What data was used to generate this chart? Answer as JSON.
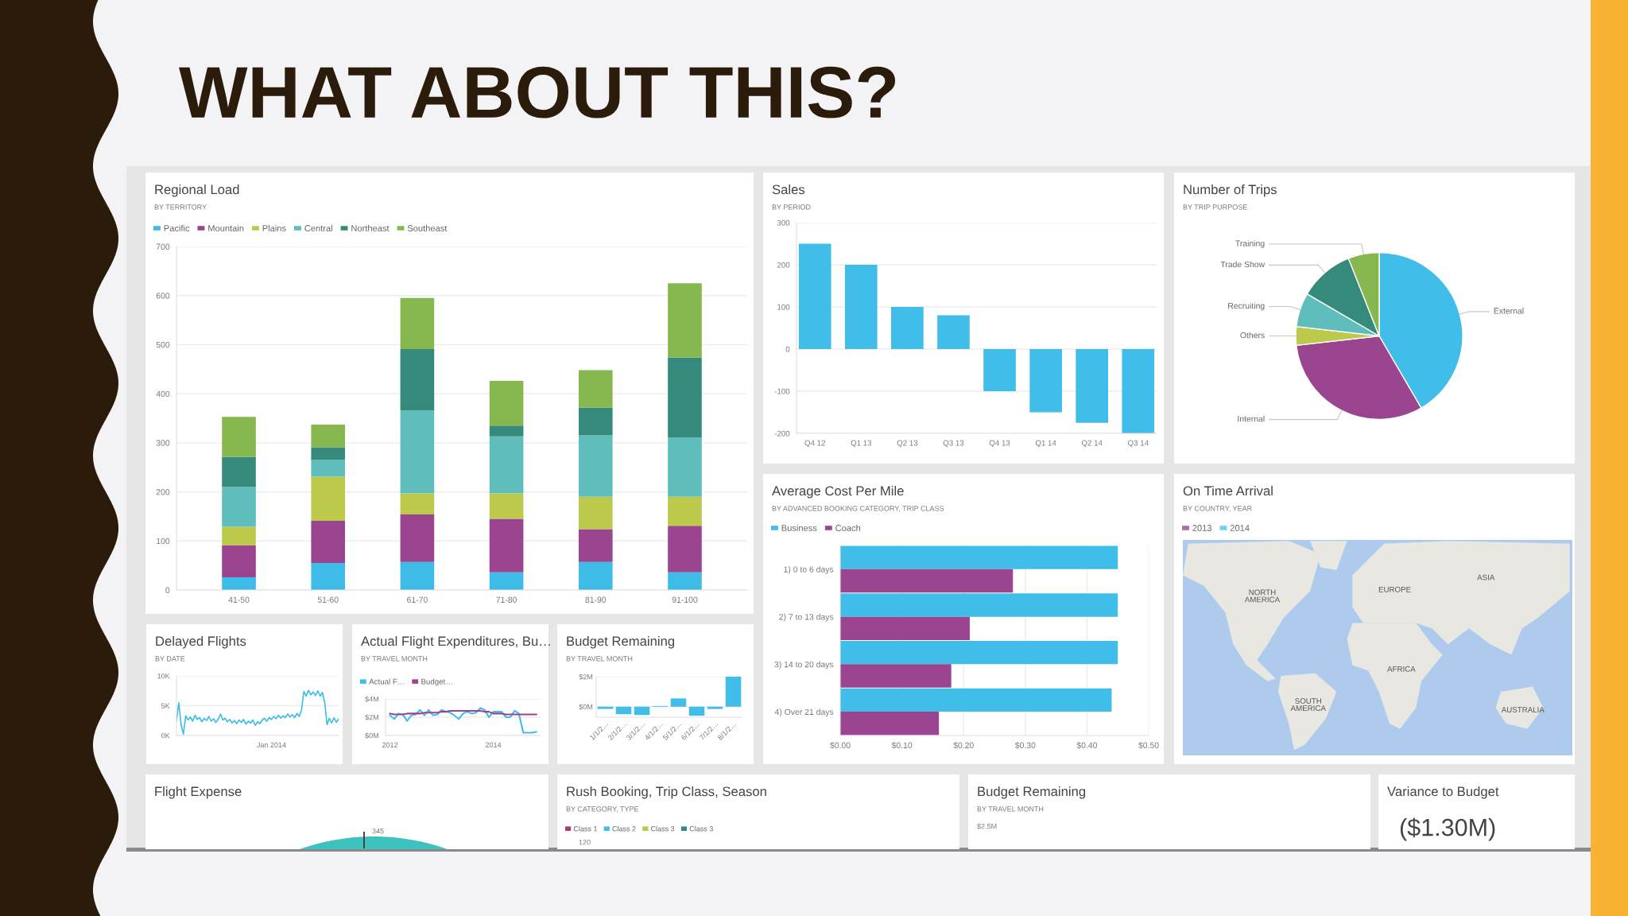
{
  "chart_data": [
    {
      "type": "other",
      "title": "WHAT ABOUT THIS?"
    },
    {
      "type": "bar",
      "title": "Regional Load",
      "subtitle": "BY TERRITORY",
      "categories": [
        "41-50",
        "51-60",
        "61-70",
        "71-80",
        "81-90",
        "91-100"
      ],
      "stacked": true,
      "series": [
        {
          "name": "Pacific",
          "color": "#3fbbe8",
          "values": [
            26,
            55,
            57,
            36,
            57,
            36
          ]
        },
        {
          "name": "Mountain",
          "color": "#9b4591",
          "values": [
            65,
            86,
            97,
            109,
            67,
            95
          ]
        },
        {
          "name": "Plains",
          "color": "#bdc94a",
          "values": [
            38,
            90,
            43,
            52,
            66,
            59
          ]
        },
        {
          "name": "Central",
          "color": "#5fbdbb",
          "values": [
            81,
            34,
            169,
            116,
            125,
            121
          ]
        },
        {
          "name": "Northeast",
          "color": "#368a7b",
          "values": [
            61,
            26,
            125,
            22,
            57,
            163
          ]
        },
        {
          "name": "Southeast",
          "color": "#87b850",
          "values": [
            82,
            46,
            104,
            91,
            76,
            151
          ]
        }
      ],
      "ylim": [
        0,
        700
      ],
      "yticks": [
        0,
        100,
        200,
        300,
        400,
        500,
        600,
        700
      ],
      "grid": "y",
      "legend": "top left"
    },
    {
      "type": "bar",
      "title": "Sales",
      "subtitle": "BY PERIOD",
      "categories": [
        "Q4 12",
        "Q1 13",
        "Q2 13",
        "Q3 13",
        "Q4 13",
        "Q1 14",
        "Q2 14",
        "Q3 14"
      ],
      "values": [
        250,
        200,
        100,
        80,
        -100,
        -150,
        -175,
        -200
      ],
      "color": "#41bde9",
      "ylim": [
        -200,
        300
      ],
      "yticks": [
        -200,
        -100,
        0,
        100,
        200,
        300
      ],
      "grid": "y"
    },
    {
      "type": "pie",
      "title": "Number of Trips",
      "subtitle": "BY TRIP PURPOSE",
      "categories": [
        "External",
        "Internal",
        "Others",
        "Recruiting",
        "Trade Show",
        "Training"
      ],
      "values": [
        41.6,
        31.6,
        3.6,
        6.6,
        10.6,
        6.0
      ],
      "colors": [
        "#41bde9",
        "#9b4591",
        "#bdc94a",
        "#5fbdbb",
        "#368a7b",
        "#87b850"
      ]
    },
    {
      "type": "bar",
      "orientation": "horizontal",
      "title": "Average Cost Per Mile",
      "subtitle": "BY ADVANCED BOOKING CATEGORY, TRIP CLASS",
      "categories": [
        "1) 0 to 6 days",
        "2) 7 to 13 days",
        "3) 14 to 20 days",
        "4) Over 21 days"
      ],
      "series": [
        {
          "name": "Business",
          "color": "#41bde9",
          "values": [
            0.45,
            0.45,
            0.45,
            0.44
          ]
        },
        {
          "name": "Coach",
          "color": "#9b4591",
          "values": [
            0.28,
            0.21,
            0.18,
            0.16
          ]
        }
      ],
      "xlim": [
        0,
        0.5
      ],
      "xticks": [
        {
          "value": 0,
          "label": "$0.00"
        },
        {
          "value": 0.1,
          "label": "$0.10"
        },
        {
          "value": 0.2,
          "label": "$0.20"
        },
        {
          "value": 0.3,
          "label": "$0.30"
        },
        {
          "value": 0.4,
          "label": "$0.40"
        },
        {
          "value": 0.5,
          "label": "$0.50"
        }
      ],
      "grid": "x",
      "legend": "top left"
    },
    {
      "type": "other",
      "title": "On Time Arrival",
      "subtitle": "BY COUNTRY, YEAR",
      "series": [
        {
          "name": "2013",
          "color": "#b06aa6"
        },
        {
          "name": "2014",
          "color": "#6fd0f5"
        }
      ],
      "legend": "top left",
      "annotations": [
        "NORTH\nAMERICA",
        "EUROPE",
        "ASIA",
        "AFRICA",
        "SOUTH\nAMERICA",
        "AUSTRALIA"
      ]
    },
    {
      "type": "line",
      "title": "Delayed Flights",
      "subtitle": "BY DATE",
      "categories": [
        null,
        null,
        null,
        null,
        null,
        null,
        null,
        null,
        null,
        null,
        null,
        null,
        null,
        null,
        null,
        null,
        null,
        null,
        null,
        null,
        null,
        null,
        null,
        null,
        null,
        null,
        null,
        null,
        null,
        null,
        null,
        null,
        null,
        null,
        null,
        null,
        null,
        null,
        null,
        null,
        null,
        "Jan 2014",
        null,
        null,
        null,
        null,
        null,
        null,
        null,
        null,
        null,
        null,
        null,
        null,
        null,
        null,
        null,
        null,
        null,
        null,
        null,
        null,
        null,
        null,
        null,
        null,
        null,
        null,
        null,
        null,
        null
      ],
      "values": [
        2500,
        5500,
        1800,
        200,
        3300,
        2600,
        3100,
        2400,
        3400,
        2700,
        3000,
        2300,
        2900,
        2500,
        3200,
        2400,
        2800,
        2200,
        2700,
        3600,
        2600,
        2900,
        2300,
        2700,
        2100,
        2500,
        2000,
        2600,
        2200,
        2700,
        1900,
        2400,
        2100,
        2600,
        1700,
        2300,
        2000,
        2600,
        2900,
        2400,
        3000,
        2700,
        3200,
        2800,
        3400,
        2900,
        3300,
        3000,
        3600,
        3100,
        3500,
        3000,
        3700,
        3200,
        4300,
        7400,
        6600,
        7600,
        6800,
        7300,
        6700,
        7500,
        6600,
        7200,
        5500,
        1800,
        2900,
        2100,
        3000,
        2200,
        2800
      ],
      "color": "#41bde9",
      "ylim": [
        0,
        10000
      ],
      "yticks": [
        {
          "value": 0,
          "label": "0K"
        },
        {
          "value": 5000,
          "label": "5K"
        },
        {
          "value": 10000,
          "label": "10K"
        }
      ],
      "grid": "y"
    },
    {
      "type": "line",
      "title": "Actual Flight Expenditures, Bu…",
      "subtitle": "BY TRAVEL MONTH",
      "x": [
        "2012-01",
        "2012-02",
        "2012-03",
        "2012-04",
        "2012-05",
        "2012-06",
        "2012-07",
        "2012-08",
        "2012-09",
        "2012-10",
        "2012-11",
        "2012-12",
        "2013-01",
        "2013-02",
        "2013-03",
        "2013-04",
        "2013-05",
        "2013-06",
        "2013-07",
        "2013-08",
        "2013-09",
        "2013-10",
        "2013-11",
        "2013-12",
        "2014-01",
        "2014-02",
        "2014-03",
        "2014-04",
        "2014-05",
        "2014-06",
        "2014-07",
        "2014-08",
        "2014-09",
        "2014-10",
        "2014-11"
      ],
      "series": [
        {
          "name": "Actual F…",
          "color": "#41bde9",
          "values": [
            2.2,
            1.8,
            2.4,
            2.3,
            1.6,
            2.2,
            2.3,
            2.8,
            2.2,
            2.8,
            2.2,
            2.3,
            2.8,
            2.6,
            2.5,
            2.2,
            1.8,
            2.4,
            2.6,
            2.4,
            2.5,
            3.0,
            2.8,
            2.0,
            2.6,
            2.6,
            2.6,
            2.0,
            2.0,
            2.7,
            2.4,
            0.3,
            0.3,
            0.3,
            0.4
          ]
        },
        {
          "name": "Budget…",
          "color": "#9b4591",
          "values": [
            2.4,
            2.3,
            2.3,
            2.3,
            2.4,
            2.4,
            2.4,
            2.4,
            2.5,
            2.5,
            2.5,
            2.5,
            2.6,
            2.6,
            2.7,
            2.7,
            2.7,
            2.7,
            2.7,
            2.7,
            2.7,
            2.7,
            2.6,
            2.6,
            2.4,
            2.4,
            2.4,
            2.3,
            2.3,
            2.3,
            2.3,
            2.3,
            2.3,
            2.3,
            2.3
          ]
        }
      ],
      "xlim": [
        "2011-12",
        "2014-12"
      ],
      "xticks": [
        {
          "value": "2012",
          "label": "2012"
        },
        {
          "value": "2014",
          "label": "2014"
        }
      ],
      "ylim": [
        0,
        4
      ],
      "yticks": [
        {
          "value": 0,
          "label": "$0M"
        },
        {
          "value": 2,
          "label": "$2M"
        },
        {
          "value": 4,
          "label": "$4M"
        }
      ],
      "grid": "y",
      "legend": "top left"
    },
    {
      "type": "bar",
      "title": "Budget Remaining",
      "subtitle": "BY TRAVEL MONTH",
      "categories": [
        "1/1/2…",
        "2/1/2…",
        "3/1/2…",
        "4/1/2…",
        "5/1/2…",
        "6/1/2…",
        "7/1/2…",
        "8/1/2…"
      ],
      "values": [
        -0.15,
        -0.5,
        -0.55,
        0.05,
        0.55,
        -0.6,
        -0.15,
        2.0
      ],
      "color": "#41bde9",
      "ylim": [
        -0.7,
        2
      ],
      "yticks": [
        {
          "value": 0,
          "label": "$0M"
        },
        {
          "value": 2,
          "label": "$2M"
        }
      ],
      "grid": "y"
    },
    {
      "type": "other",
      "title": "Flight Expense",
      "annotations": [
        "345"
      ]
    },
    {
      "type": "other",
      "title": "Rush Booking, Trip Class, Season",
      "subtitle": "BY CATEGORY, TYPE",
      "series": [
        {
          "name": "Class 1",
          "color": "#a2416f"
        },
        {
          "name": "Class 2",
          "color": "#41bde9"
        },
        {
          "name": "Class 3",
          "color": "#bdc94a"
        },
        {
          "name": "Class 3",
          "color": "#368a7b"
        }
      ],
      "legend": "top left",
      "annotations": [
        "120"
      ]
    },
    {
      "type": "other",
      "title": "Budget Remaining",
      "subtitle": "BY TRAVEL MONTH",
      "annotations": [
        "$2.5M"
      ]
    },
    {
      "type": "other",
      "title": "Variance to Budget",
      "annotations": [
        "($1.30M)"
      ]
    }
  ]
}
